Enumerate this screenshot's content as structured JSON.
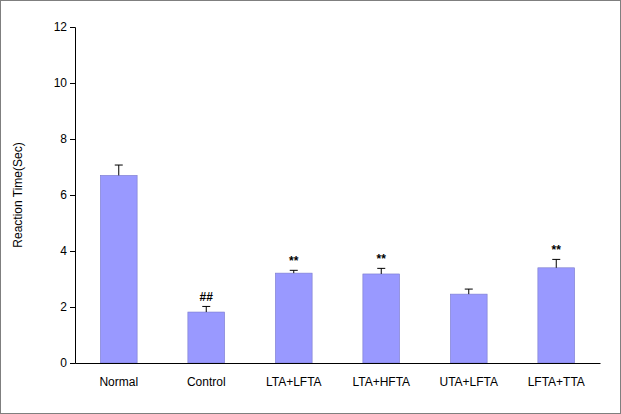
{
  "chart_data": {
    "type": "bar",
    "y_label": "Reaction Time(Sec)",
    "categories": [
      "Normal",
      "Control",
      "LTA+LFTA",
      "LTA+HFTA",
      "UTA+LFTA",
      "LFTA+TTA"
    ],
    "values": [
      6.7,
      1.82,
      3.21,
      3.18,
      2.46,
      3.4
    ],
    "errors": [
      0.37,
      0.2,
      0.1,
      0.2,
      0.18,
      0.3
    ],
    "annotations": [
      null,
      "##",
      "**",
      "**",
      null,
      "**"
    ],
    "color": "#9999ff",
    "ylim": [
      0,
      12
    ],
    "yticks": [
      0,
      2,
      4,
      6,
      8,
      10,
      12
    ],
    "grid": false
  }
}
